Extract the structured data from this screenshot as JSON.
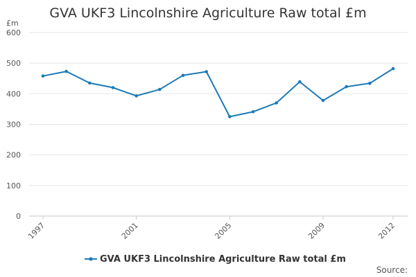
{
  "chart_data": {
    "type": "line",
    "title": "GVA UKF3 Lincolnshire Agriculture Raw total £m",
    "ylabel": "£m",
    "xlabel": "",
    "ylim": [
      0,
      600
    ],
    "yticks": [
      0,
      100,
      200,
      300,
      400,
      500,
      600
    ],
    "xlim": [
      1997,
      2012
    ],
    "xticks": [
      1997,
      2001,
      2005,
      2009,
      2012
    ],
    "grid": true,
    "legend": "bottom-center",
    "series": [
      {
        "name": "GVA UKF3 Lincolnshire Agriculture Raw total £m",
        "color": "#1a7ab8",
        "x": [
          1997,
          1998,
          1999,
          2000,
          2001,
          2002,
          2003,
          2004,
          2005,
          2006,
          2007,
          2008,
          2009,
          2010,
          2011,
          2012
        ],
        "values": [
          458,
          473,
          435,
          420,
          393,
          414,
          460,
          472,
          325,
          341,
          370,
          439,
          378,
          423,
          434,
          482
        ]
      }
    ],
    "source_label": "Source:"
  }
}
